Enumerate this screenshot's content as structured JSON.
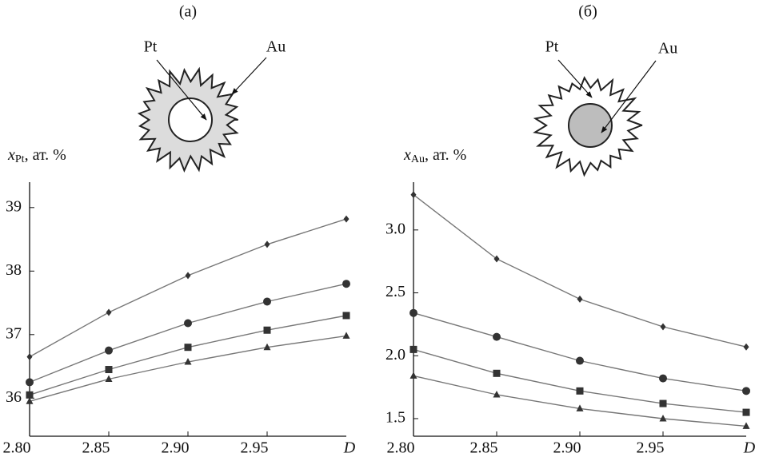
{
  "chart_data": [
    {
      "type": "line",
      "title": "(a)",
      "y_label_symbol": "x",
      "y_label_sub": "Pt",
      "y_label_unit": ", ат. %",
      "x_label": "D",
      "annotations": [
        "Pt",
        "Au"
      ],
      "x": [
        2.8,
        2.85,
        2.9,
        2.95,
        3.0
      ],
      "xlim": [
        2.8,
        3.0
      ],
      "xticks": [
        {
          "value": 2.8,
          "label": "2.80"
        },
        {
          "value": 2.85,
          "label": "2.85"
        },
        {
          "value": 2.9,
          "label": "2.90"
        },
        {
          "value": 2.95,
          "label": "2.95"
        }
      ],
      "ylim": [
        35.4,
        39.4
      ],
      "yticks": [
        36,
        37,
        38,
        39
      ],
      "series": [
        {
          "marker": "diamond",
          "color": "#777777",
          "values": [
            36.65,
            37.35,
            37.93,
            38.42,
            38.82
          ]
        },
        {
          "marker": "circle",
          "color": "#777777",
          "values": [
            36.25,
            36.75,
            37.18,
            37.52,
            37.8
          ]
        },
        {
          "marker": "square",
          "color": "#777777",
          "values": [
            36.05,
            36.45,
            36.8,
            37.07,
            37.3
          ]
        },
        {
          "marker": "triangle",
          "color": "#777777",
          "values": [
            35.95,
            36.3,
            36.57,
            36.8,
            36.98
          ]
        }
      ]
    },
    {
      "type": "line",
      "title": "(б)",
      "y_label_symbol": "x",
      "y_label_sub": "Au",
      "y_label_unit": ", ат. %",
      "x_label": "D",
      "annotations": [
        "Pt",
        "Au"
      ],
      "x": [
        2.8,
        2.85,
        2.9,
        2.95,
        3.0
      ],
      "xlim": [
        2.8,
        3.0
      ],
      "xticks": [
        {
          "value": 2.8,
          "label": "2.80"
        },
        {
          "value": 2.85,
          "label": "2.85"
        },
        {
          "value": 2.9,
          "label": "2.90"
        },
        {
          "value": 2.95,
          "label": "2.95"
        }
      ],
      "ylim": [
        1.36,
        3.38
      ],
      "yticks": [
        1.5,
        {
          "value": 2.0,
          "label": "2.0"
        },
        2.5,
        {
          "value": 3.0,
          "label": "3.0"
        }
      ],
      "series": [
        {
          "marker": "diamond",
          "color": "#777777",
          "values": [
            3.28,
            2.77,
            2.45,
            2.23,
            2.07
          ]
        },
        {
          "marker": "circle",
          "color": "#777777",
          "values": [
            2.34,
            2.15,
            1.96,
            1.82,
            1.72
          ]
        },
        {
          "marker": "square",
          "color": "#777777",
          "values": [
            2.05,
            1.86,
            1.72,
            1.62,
            1.55
          ]
        },
        {
          "marker": "triangle",
          "color": "#777777",
          "values": [
            1.84,
            1.69,
            1.58,
            1.5,
            1.44
          ]
        }
      ]
    }
  ]
}
